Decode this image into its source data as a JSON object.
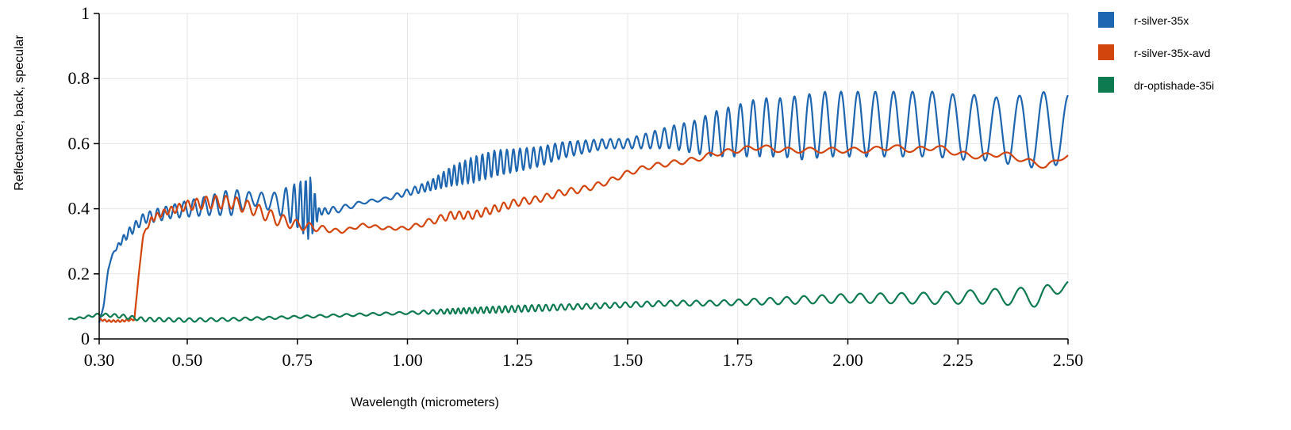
{
  "chart_data": {
    "type": "line",
    "title": "",
    "xlabel": "Wavelength (micrometers)",
    "ylabel": "Reflectance, back, specular",
    "xlim": [
      0.3,
      2.5
    ],
    "ylim": [
      0,
      1
    ],
    "x_ticks": [
      0.3,
      0.5,
      0.75,
      1.0,
      1.25,
      1.5,
      1.75,
      2.0,
      2.25,
      2.5
    ],
    "x_tick_labels": [
      "0.30",
      "0.50",
      "0.75",
      "1.00",
      "1.25",
      "1.50",
      "1.75",
      "2.00",
      "2.25",
      "2.50"
    ],
    "y_ticks": [
      0,
      0.2,
      0.4,
      0.6,
      0.8,
      1
    ],
    "y_tick_labels": [
      "0",
      "0.2",
      "0.4",
      "0.6",
      "0.8",
      "1"
    ],
    "grid": true,
    "legend_position": "right",
    "series": [
      {
        "name": "r-silver-35x",
        "color": "#1f66b0",
        "x": [
          0.3,
          0.31,
          0.32,
          0.33,
          0.35,
          0.37,
          0.4,
          0.43,
          0.46,
          0.5,
          0.55,
          0.6,
          0.65,
          0.7,
          0.75,
          0.78,
          0.8,
          0.85,
          0.9,
          0.95,
          1.0,
          1.05,
          1.1,
          1.15,
          1.2,
          1.25,
          1.3,
          1.35,
          1.4,
          1.45,
          1.5,
          1.55,
          1.6,
          1.65,
          1.7,
          1.75,
          1.8,
          1.85,
          1.9,
          1.95,
          2.0,
          2.05,
          2.1,
          2.15,
          2.2,
          2.25,
          2.3,
          2.35,
          2.4,
          2.45,
          2.5
        ],
        "y": [
          0.05,
          0.1,
          0.21,
          0.26,
          0.3,
          0.33,
          0.37,
          0.38,
          0.39,
          0.4,
          0.41,
          0.42,
          0.43,
          0.42,
          0.41,
          0.4,
          0.39,
          0.4,
          0.42,
          0.43,
          0.45,
          0.47,
          0.5,
          0.52,
          0.54,
          0.55,
          0.56,
          0.58,
          0.59,
          0.6,
          0.6,
          0.61,
          0.62,
          0.62,
          0.63,
          0.64,
          0.65,
          0.65,
          0.65,
          0.66,
          0.66,
          0.66,
          0.66,
          0.66,
          0.66,
          0.65,
          0.65,
          0.64,
          0.64,
          0.64,
          0.65
        ],
        "osc_amp": [
          0,
          0,
          0,
          0,
          0.01,
          0.015,
          0.015,
          0.02,
          0.02,
          0.025,
          0.03,
          0.04,
          0.02,
          0.03,
          0.07,
          0.1,
          0.01,
          0.01,
          0.005,
          0.005,
          0.01,
          0.015,
          0.03,
          0.04,
          0.04,
          0.035,
          0.03,
          0.025,
          0.02,
          0.015,
          0.015,
          0.025,
          0.035,
          0.05,
          0.07,
          0.08,
          0.09,
          0.09,
          0.1,
          0.1,
          0.1,
          0.1,
          0.1,
          0.1,
          0.1,
          0.1,
          0.1,
          0.1,
          0.11,
          0.12,
          0.1
        ],
        "osc_period": [
          0.01,
          0.01,
          0.01,
          0.01,
          0.012,
          0.014,
          0.016,
          0.018,
          0.02,
          0.022,
          0.024,
          0.026,
          0.028,
          0.03,
          0.014,
          0.01,
          0.01,
          0.03,
          0.03,
          0.03,
          0.02,
          0.012,
          0.012,
          0.013,
          0.014,
          0.015,
          0.016,
          0.017,
          0.018,
          0.019,
          0.02,
          0.021,
          0.022,
          0.024,
          0.026,
          0.028,
          0.03,
          0.032,
          0.034,
          0.036,
          0.038,
          0.04,
          0.042,
          0.044,
          0.046,
          0.048,
          0.05,
          0.052,
          0.054,
          0.056,
          0.058
        ]
      },
      {
        "name": "r-silver-35x-avd",
        "color": "#d2460e",
        "x": [
          0.3,
          0.32,
          0.35,
          0.38,
          0.39,
          0.4,
          0.42,
          0.45,
          0.5,
          0.55,
          0.6,
          0.65,
          0.7,
          0.75,
          0.8,
          0.85,
          0.9,
          0.95,
          1.0,
          1.05,
          1.1,
          1.15,
          1.2,
          1.25,
          1.3,
          1.35,
          1.4,
          1.45,
          1.5,
          1.55,
          1.6,
          1.65,
          1.7,
          1.75,
          1.8,
          1.85,
          1.9,
          1.95,
          2.0,
          2.05,
          2.1,
          2.15,
          2.2,
          2.25,
          2.3,
          2.35,
          2.4,
          2.45,
          2.5
        ],
        "y": [
          0.06,
          0.055,
          0.055,
          0.06,
          0.2,
          0.32,
          0.37,
          0.39,
          0.41,
          0.42,
          0.42,
          0.4,
          0.37,
          0.35,
          0.34,
          0.33,
          0.35,
          0.34,
          0.34,
          0.36,
          0.38,
          0.38,
          0.4,
          0.42,
          0.43,
          0.45,
          0.46,
          0.48,
          0.51,
          0.53,
          0.54,
          0.55,
          0.57,
          0.58,
          0.59,
          0.58,
          0.58,
          0.58,
          0.58,
          0.58,
          0.59,
          0.58,
          0.59,
          0.57,
          0.56,
          0.57,
          0.55,
          0.53,
          0.565
        ],
        "osc_amp": [
          0.003,
          0.003,
          0.003,
          0.003,
          0,
          0,
          0.01,
          0.01,
          0.015,
          0.02,
          0.02,
          0.02,
          0.02,
          0.015,
          0.01,
          0.005,
          0.005,
          0.005,
          0.005,
          0.01,
          0.012,
          0.012,
          0.012,
          0.012,
          0.01,
          0.01,
          0.01,
          0.008,
          0.008,
          0.008,
          0.008,
          0.008,
          0.008,
          0.008,
          0.008,
          0.008,
          0.008,
          0.008,
          0.008,
          0.008,
          0.008,
          0.008,
          0.008,
          0.008,
          0.008,
          0.008,
          0.008,
          0.008,
          0.004
        ],
        "osc_period": [
          0.01,
          0.01,
          0.01,
          0.01,
          0.01,
          0.012,
          0.014,
          0.016,
          0.02,
          0.022,
          0.024,
          0.026,
          0.028,
          0.03,
          0.03,
          0.03,
          0.03,
          0.03,
          0.03,
          0.03,
          0.02,
          0.02,
          0.02,
          0.024,
          0.026,
          0.028,
          0.03,
          0.032,
          0.034,
          0.036,
          0.038,
          0.04,
          0.042,
          0.044,
          0.046,
          0.048,
          0.05,
          0.05,
          0.05,
          0.05,
          0.05,
          0.05,
          0.05,
          0.05,
          0.05,
          0.05,
          0.05,
          0.05,
          0.05
        ]
      },
      {
        "name": "dr-optishade-35i",
        "color": "#0e7a4f",
        "x": [
          0.23,
          0.26,
          0.3,
          0.35,
          0.4,
          0.5,
          0.6,
          0.7,
          0.8,
          0.9,
          1.0,
          1.1,
          1.2,
          1.3,
          1.4,
          1.5,
          1.6,
          1.7,
          1.8,
          1.9,
          2.0,
          2.1,
          2.2,
          2.3,
          2.4,
          2.45,
          2.5
        ],
        "y": [
          0.06,
          0.065,
          0.075,
          0.07,
          0.06,
          0.058,
          0.06,
          0.065,
          0.07,
          0.075,
          0.08,
          0.085,
          0.09,
          0.095,
          0.1,
          0.105,
          0.11,
          0.11,
          0.115,
          0.12,
          0.125,
          0.125,
          0.125,
          0.13,
          0.13,
          0.13,
          0.175
        ],
        "osc_amp": [
          0.002,
          0.003,
          0.004,
          0.006,
          0.006,
          0.006,
          0.005,
          0.004,
          0.004,
          0.004,
          0.004,
          0.008,
          0.01,
          0.01,
          0.008,
          0.008,
          0.008,
          0.008,
          0.01,
          0.012,
          0.014,
          0.016,
          0.018,
          0.022,
          0.028,
          0.035,
          0.005
        ],
        "osc_period": [
          0.02,
          0.02,
          0.02,
          0.02,
          0.02,
          0.024,
          0.026,
          0.028,
          0.03,
          0.03,
          0.03,
          0.012,
          0.014,
          0.016,
          0.02,
          0.024,
          0.028,
          0.032,
          0.036,
          0.04,
          0.044,
          0.048,
          0.052,
          0.056,
          0.06,
          0.06,
          0.06
        ]
      }
    ]
  }
}
